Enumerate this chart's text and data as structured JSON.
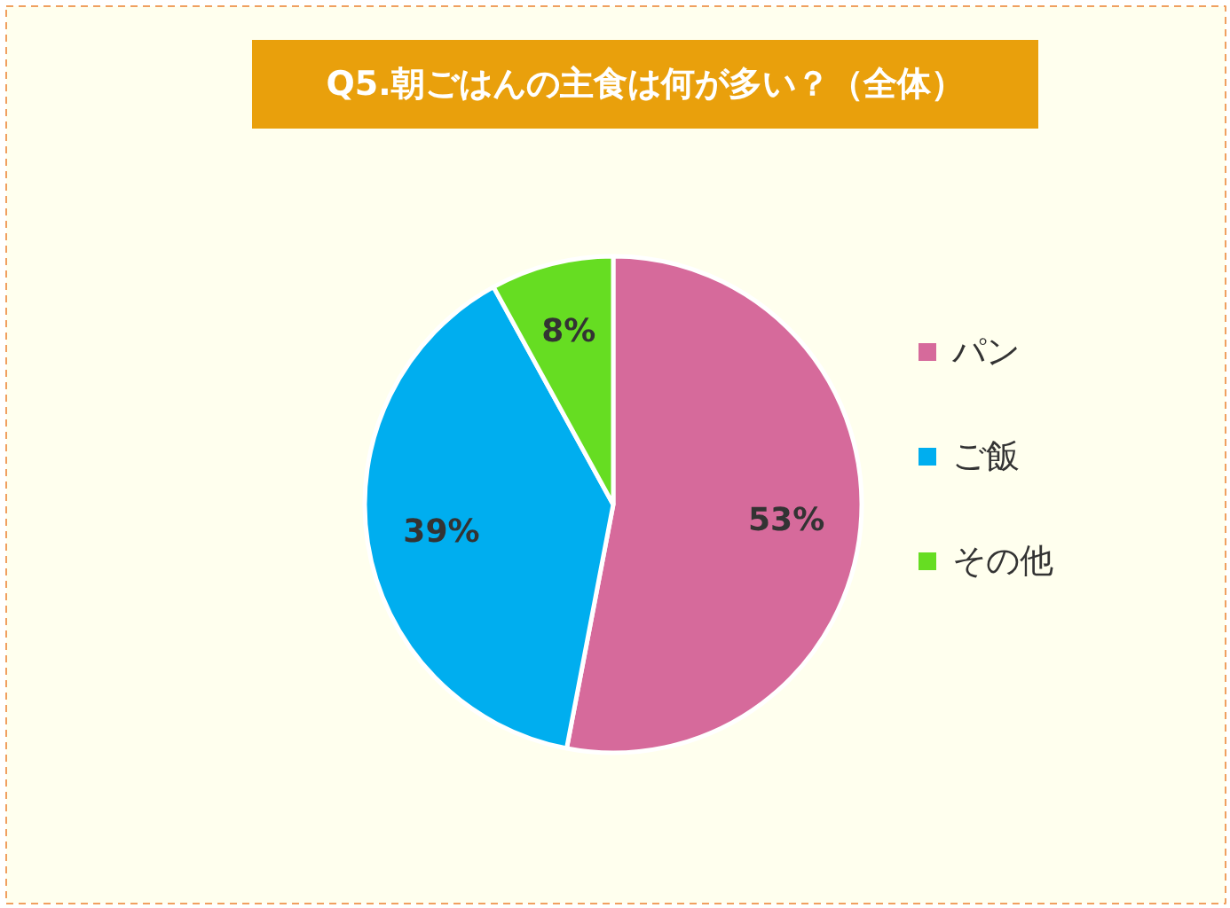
{
  "chart_data": {
    "type": "pie",
    "title": "Q5.朝ごはんの主食は何が多い？（全体）",
    "categories": [
      "パン",
      "ご飯",
      "その他"
    ],
    "values": [
      53,
      39,
      8
    ],
    "colors": [
      "#d66a9b",
      "#00aeef",
      "#66dd22"
    ],
    "value_labels": [
      "53%",
      "39%",
      "8%"
    ],
    "legend": "right"
  }
}
